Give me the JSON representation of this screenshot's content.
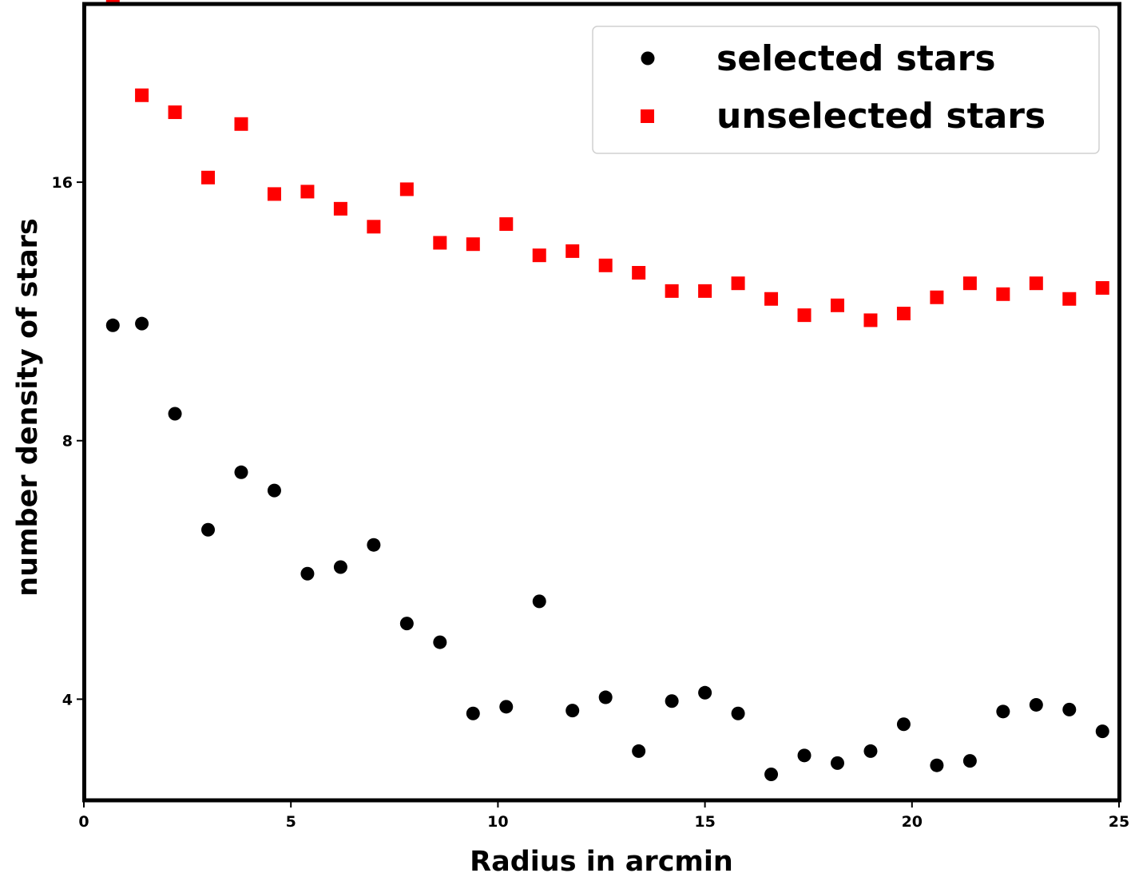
{
  "chart_data": {
    "type": "scatter",
    "xlabel": "Radius in arcmin",
    "ylabel": "number density of stars",
    "xlim": [
      0,
      25
    ],
    "ylim": [
      3.05,
      25.8
    ],
    "yscale": "log2",
    "xticks": [
      0,
      5,
      10,
      15,
      20,
      25
    ],
    "yticks": [
      4,
      8,
      16
    ],
    "grid": false,
    "legend_position": "top-right",
    "series": [
      {
        "name": "selected stars",
        "marker": "circle",
        "color": "#000000",
        "x": [
          0.7,
          1.4,
          2.2,
          3.0,
          3.8,
          4.6,
          5.4,
          6.2,
          7.0,
          7.8,
          8.6,
          9.4,
          10.2,
          11.0,
          11.8,
          12.6,
          13.4,
          14.2,
          15.0,
          15.8,
          16.6,
          17.4,
          18.2,
          19.0,
          19.8,
          20.6,
          21.4,
          22.2,
          23.0,
          23.8,
          24.6
        ],
        "y": [
          10.9,
          10.95,
          8.6,
          6.3,
          7.35,
          7.0,
          5.6,
          5.7,
          6.05,
          4.9,
          4.66,
          3.85,
          3.92,
          5.2,
          3.88,
          4.02,
          3.48,
          3.98,
          4.07,
          3.85,
          3.27,
          3.44,
          3.37,
          3.48,
          3.74,
          3.35,
          3.39,
          3.87,
          3.94,
          3.89,
          3.67
        ]
      },
      {
        "name": "unselected stars",
        "marker": "square",
        "color": "#ff0000",
        "x": [
          0.7,
          1.4,
          2.2,
          3.0,
          3.8,
          4.6,
          5.4,
          6.2,
          7.0,
          7.8,
          8.6,
          9.4,
          10.2,
          11.0,
          11.8,
          12.6,
          13.4,
          14.2,
          15.0,
          15.8,
          16.6,
          17.4,
          18.2,
          19.0,
          19.8,
          20.6,
          21.4,
          22.2,
          23.0,
          23.8,
          24.6
        ],
        "y": [
          26.3,
          20.2,
          19.3,
          16.2,
          18.7,
          15.5,
          15.6,
          14.9,
          14.2,
          15.7,
          13.6,
          13.55,
          14.3,
          13.15,
          13.3,
          12.8,
          12.55,
          11.95,
          11.95,
          12.2,
          11.7,
          11.2,
          11.5,
          11.05,
          11.25,
          11.75,
          12.2,
          11.85,
          12.2,
          11.7,
          12.05
        ]
      }
    ]
  }
}
